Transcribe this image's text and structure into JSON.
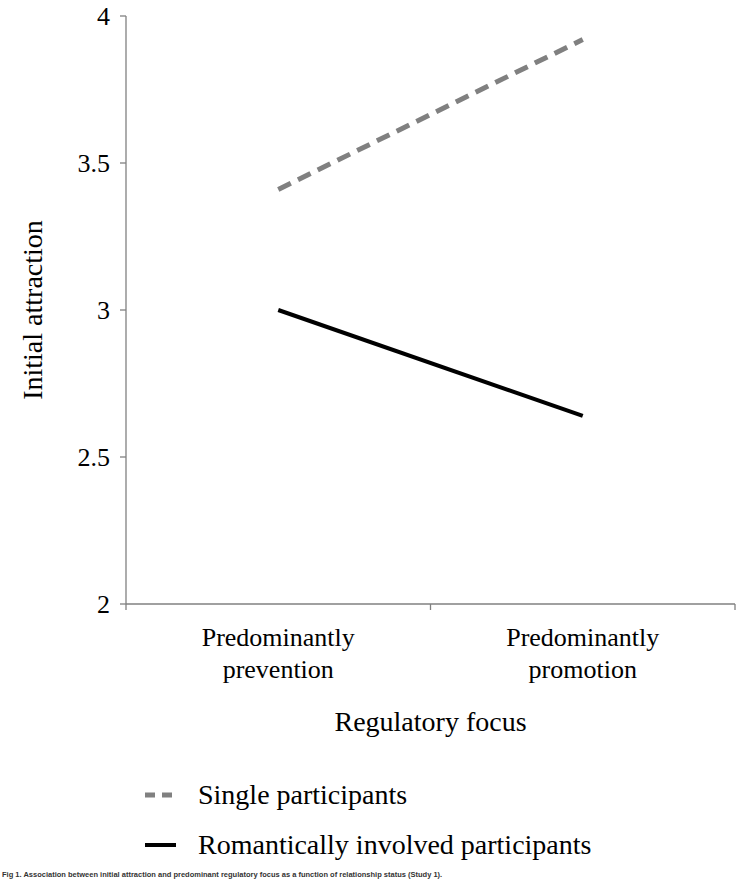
{
  "chart_data": {
    "type": "line",
    "title": "Fig 1. Association between initial attraction and predominant regulatory focus as a function of relationship status (Study 1).",
    "x_label": "Regulatory focus",
    "y_label": "Initial attraction",
    "categories": [
      "Predominantly prevention",
      "Predominantly promotion"
    ],
    "series": [
      {
        "name": "Single participants",
        "color": "#808080",
        "line_style": "dashed",
        "values": [
          3.41,
          3.92
        ]
      },
      {
        "name": "Romantically involved participants",
        "color": "#000000",
        "line_style": "solid",
        "values": [
          3.0,
          2.64
        ]
      }
    ],
    "ylim": [
      2,
      4
    ],
    "yticks": [
      2,
      2.5,
      3,
      3.5,
      4
    ],
    "grid": false,
    "legend": "bottom"
  }
}
